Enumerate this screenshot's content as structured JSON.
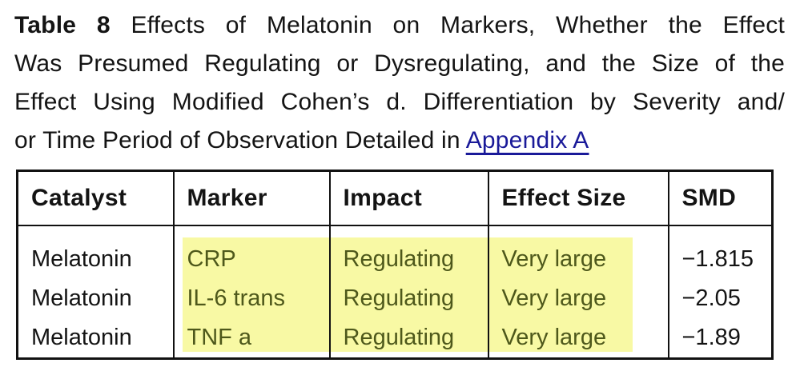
{
  "caption": {
    "label": "Table 8",
    "line1_rest": "Effects of Melatonin on Markers, Whether the Effect",
    "line2": "Was Presumed Regulating or Dysregulating, and the Size of the",
    "line3": "Effect Using Modified Cohen’s d. Differentiation by Severity and/",
    "line4_text": "or Time Period of Observation Detailed in",
    "link_label": "Appendix A"
  },
  "table": {
    "headers": [
      "Catalyst",
      "Marker",
      "Impact",
      "Effect Size",
      "SMD"
    ],
    "rows": [
      {
        "catalyst": "Melatonin",
        "marker": "CRP",
        "impact": "Regulating",
        "effect_size": "Very large",
        "smd": "−1.815"
      },
      {
        "catalyst": "Melatonin",
        "marker": "IL-6 trans",
        "impact": "Regulating",
        "effect_size": "Very large",
        "smd": "−2.05"
      },
      {
        "catalyst": "Melatonin",
        "marker": "TNF a",
        "impact": "Regulating",
        "effect_size": "Very large",
        "smd": "−1.89"
      }
    ]
  },
  "colors": {
    "highlight_background": "#f8f9a4",
    "highlight_text": "#4e581b",
    "link": "#1a1a99",
    "text": "#141414",
    "border": "#111111"
  }
}
